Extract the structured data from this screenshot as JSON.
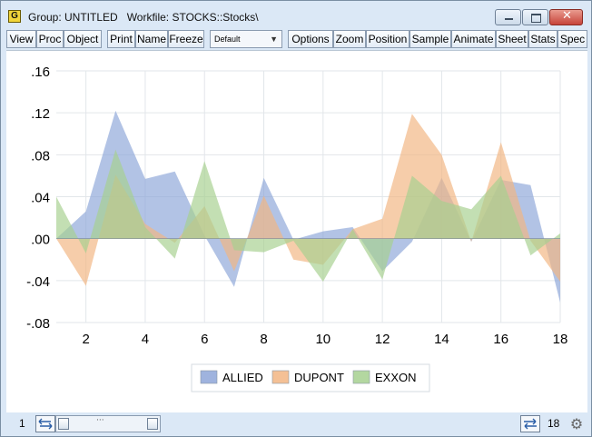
{
  "window": {
    "title": "Group: UNTITLED   Workfile: STOCKS::Stocks\\",
    "app_icon_letter": "G",
    "close_glyph": "✕"
  },
  "toolbar": {
    "buttons": [
      "View",
      "Proc",
      "Object",
      "Print",
      "Name",
      "Freeze",
      "Options",
      "Zoom",
      "Position",
      "Sample",
      "Animate",
      "Sheet",
      "Stats",
      "Spec"
    ],
    "template_select": "Default"
  },
  "status": {
    "left_value": "1",
    "right_value": "18"
  },
  "colors": {
    "allied": "#8ea6d8",
    "dupont": "#f2b582",
    "exxon": "#a6d08f",
    "window_bg": "#dbe8f6",
    "grid": "#e2e6ea"
  },
  "chart_data": {
    "type": "area",
    "x": [
      1,
      2,
      3,
      4,
      5,
      6,
      7,
      8,
      9,
      10,
      11,
      12,
      13,
      14,
      15,
      16,
      17,
      18
    ],
    "xticks": [
      "2",
      "4",
      "6",
      "8",
      "10",
      "12",
      "14",
      "16",
      "18"
    ],
    "yticks": [
      ".16",
      ".12",
      ".08",
      ".04",
      ".00",
      "-.04",
      "-.08"
    ],
    "ylim": [
      -0.08,
      0.16
    ],
    "grid": true,
    "legend_position": "bottom-center",
    "series": [
      {
        "name": "ALLIED",
        "values": [
          0.0,
          0.026,
          0.122,
          0.057,
          0.064,
          0.003,
          -0.046,
          0.058,
          -0.001,
          0.007,
          0.011,
          -0.031,
          -0.003,
          0.058,
          -0.003,
          0.056,
          0.051,
          -0.061
        ]
      },
      {
        "name": "DUPONT",
        "values": [
          0.0,
          -0.045,
          0.061,
          0.014,
          -0.004,
          0.031,
          -0.031,
          0.041,
          -0.02,
          -0.025,
          0.009,
          0.019,
          0.119,
          0.08,
          -0.003,
          0.092,
          -0.002,
          -0.041
        ]
      },
      {
        "name": "EXXON",
        "values": [
          0.04,
          -0.014,
          0.085,
          0.011,
          -0.019,
          0.074,
          -0.011,
          -0.013,
          -0.002,
          -0.041,
          0.009,
          -0.039,
          0.06,
          0.036,
          0.028,
          0.06,
          -0.016,
          0.005
        ]
      }
    ]
  }
}
